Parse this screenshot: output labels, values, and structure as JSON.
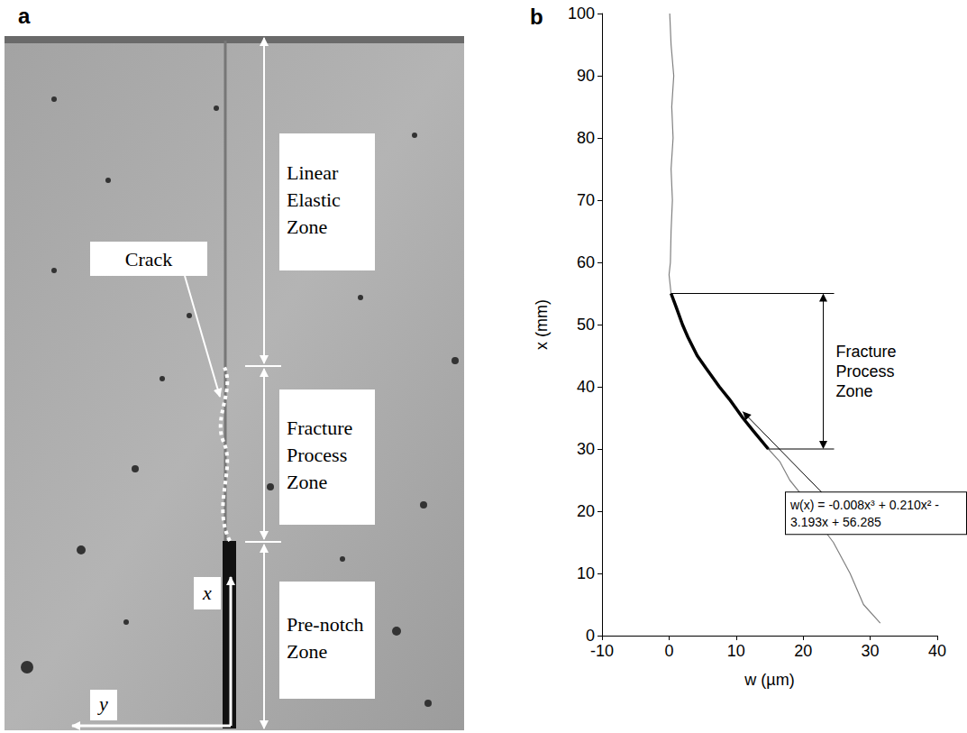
{
  "figure_a": {
    "letter": "a",
    "zones": [
      "Linear Elastic Zone",
      "Fracture Process Zone",
      "Pre-notch Zone"
    ],
    "crack_label": "Crack",
    "axis_x": "x",
    "axis_y": "y"
  },
  "chart_data": {
    "letter": "b",
    "type": "line",
    "x_label": "w (µm)",
    "y_label": "x (mm)",
    "xlim": [
      -10,
      40
    ],
    "xticks": [
      -10,
      0,
      10,
      20,
      30,
      40
    ],
    "ylim": [
      0,
      100
    ],
    "yticks": [
      0,
      10,
      20,
      30,
      40,
      50,
      60,
      70,
      80,
      90,
      100
    ],
    "grid": false,
    "series": [
      {
        "type": "line",
        "color": "#808080",
        "points": [
          [
            31.5,
            2
          ],
          [
            29,
            5
          ],
          [
            27,
            10
          ],
          [
            24.5,
            15
          ],
          [
            21,
            20
          ],
          [
            19.5,
            23
          ],
          [
            18,
            25
          ],
          [
            16.5,
            28
          ],
          [
            14.8,
            30
          ],
          [
            12.5,
            33
          ],
          [
            11,
            35
          ],
          [
            9,
            38
          ],
          [
            7.5,
            40
          ],
          [
            5.5,
            43
          ],
          [
            4.2,
            45
          ],
          [
            2.8,
            48
          ],
          [
            2,
            50
          ],
          [
            1,
            53
          ],
          [
            0.3,
            55
          ],
          [
            0,
            58
          ],
          [
            0.2,
            60
          ],
          [
            0.3,
            65
          ],
          [
            0.5,
            70
          ],
          [
            0.3,
            75
          ],
          [
            0.6,
            80
          ],
          [
            0.4,
            85
          ],
          [
            0.7,
            90
          ],
          [
            0.3,
            95
          ],
          [
            0.1,
            100
          ]
        ]
      },
      {
        "type": "line",
        "color": "#000000",
        "points": [
          [
            14.8,
            30
          ],
          [
            12.5,
            33
          ],
          [
            11,
            35
          ],
          [
            9,
            38
          ],
          [
            7.5,
            40
          ],
          [
            5.5,
            43
          ],
          [
            4.2,
            45
          ],
          [
            2.8,
            48
          ],
          [
            2,
            50
          ],
          [
            1,
            53
          ],
          [
            0.3,
            55
          ]
        ]
      }
    ],
    "annotations": [
      {
        "text": "Fracture Process Zone",
        "x_range": [
          30,
          55
        ]
      },
      {
        "text": "w(x) = -0.008x³ + 0.210x² - 3.193x + 56.285",
        "point": [
          11,
          36
        ]
      }
    ]
  }
}
